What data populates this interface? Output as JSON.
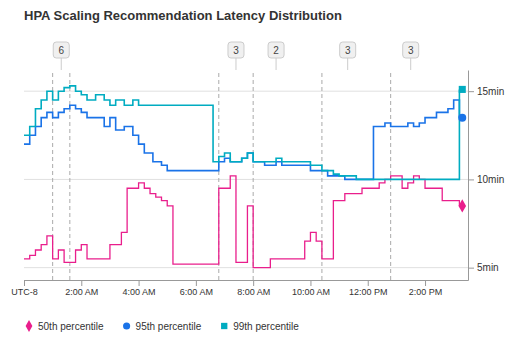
{
  "chart_data": {
    "type": "step",
    "title": "HPA Scaling Recommendation Latency Distribution",
    "xlim": [
      0,
      15.5
    ],
    "xticks": [
      {
        "value": 0,
        "label": "UTC-8"
      },
      {
        "value": 2,
        "label": "2:00 AM"
      },
      {
        "value": 4,
        "label": "4:00 AM"
      },
      {
        "value": 6,
        "label": "6:00 AM"
      },
      {
        "value": 8,
        "label": "8:00 AM"
      },
      {
        "value": 10,
        "label": "10:00 AM"
      },
      {
        "value": 12,
        "label": "12:00 PM"
      },
      {
        "value": 14,
        "label": "2:00 PM"
      }
    ],
    "ylim": [
      4.3,
      16.2
    ],
    "yticks": [
      {
        "value": 5,
        "label": "5min"
      },
      {
        "value": 10,
        "label": "10min"
      },
      {
        "value": 15,
        "label": "15min"
      }
    ],
    "grid": true,
    "legend": "lower left",
    "vlines": [
      1.0,
      1.6,
      6.8,
      8.0,
      10.4,
      12.8
    ],
    "annotations": [
      {
        "x": 1.3,
        "label": "6"
      },
      {
        "x": 7.4,
        "label": "3"
      },
      {
        "x": 8.8,
        "label": "2"
      },
      {
        "x": 11.3,
        "label": "3"
      },
      {
        "x": 13.5,
        "label": "3"
      }
    ],
    "series": [
      {
        "name": "50th percentile",
        "color": "#e91e8c",
        "marker": "diamond",
        "end_x": 15.3,
        "end_value": 8.5,
        "x": [
          0.0,
          0.2,
          0.4,
          0.6,
          0.8,
          1.0,
          1.2,
          1.4,
          1.6,
          1.8,
          2.0,
          2.2,
          2.5,
          2.8,
          3.0,
          3.2,
          3.4,
          3.6,
          3.8,
          4.0,
          4.2,
          4.4,
          4.6,
          4.8,
          5.0,
          5.2,
          5.4,
          5.6,
          5.8,
          6.0,
          6.2,
          6.4,
          6.6,
          6.8,
          7.0,
          7.2,
          7.4,
          7.6,
          7.8,
          8.0,
          8.2,
          8.4,
          8.6,
          8.8,
          9.0,
          9.2,
          9.4,
          9.6,
          9.8,
          10.0,
          10.2,
          10.4,
          10.6,
          10.8,
          11.0,
          11.2,
          11.4,
          11.6,
          11.8,
          12.0,
          12.2,
          12.4,
          12.6,
          12.8,
          13.0,
          13.2,
          13.4,
          13.6,
          13.8,
          14.0,
          14.2,
          14.4,
          14.6,
          14.8,
          15.0,
          15.2
        ],
        "values": [
          5.5,
          5.7,
          6.0,
          6.3,
          6.8,
          5.5,
          6.0,
          5.3,
          5.3,
          6.0,
          6.3,
          5.5,
          5.5,
          5.5,
          6.3,
          6.3,
          7.0,
          9.5,
          9.5,
          9.8,
          9.5,
          9.2,
          9.0,
          8.8,
          8.5,
          5.2,
          5.2,
          5.2,
          5.2,
          5.2,
          5.2,
          5.2,
          5.2,
          9.5,
          9.5,
          10.2,
          5.3,
          5.3,
          8.5,
          5.0,
          5.0,
          5.0,
          5.5,
          5.5,
          5.5,
          5.5,
          5.5,
          5.5,
          6.5,
          7.0,
          6.5,
          5.5,
          5.5,
          8.8,
          8.8,
          9.2,
          9.2,
          9.2,
          9.5,
          9.5,
          9.5,
          9.8,
          10.0,
          10.2,
          10.2,
          9.5,
          9.8,
          10.2,
          10.0,
          9.5,
          9.5,
          9.5,
          8.8,
          8.8,
          8.8,
          8.5
        ]
      },
      {
        "name": "95th percentile",
        "color": "#1a73e8",
        "marker": "circle",
        "end_x": 15.3,
        "end_value": 13.5,
        "x": [
          0.0,
          0.2,
          0.4,
          0.6,
          0.8,
          1.0,
          1.2,
          1.4,
          1.6,
          1.8,
          2.0,
          2.2,
          2.5,
          2.8,
          3.0,
          3.2,
          3.5,
          3.8,
          4.0,
          4.2,
          4.5,
          4.8,
          5.0,
          5.5,
          6.0,
          6.6,
          6.8,
          7.0,
          7.2,
          7.4,
          7.6,
          7.8,
          8.0,
          8.4,
          8.8,
          9.0,
          9.5,
          9.8,
          10.0,
          10.4,
          10.6,
          10.8,
          11.0,
          11.2,
          11.4,
          11.6,
          11.8,
          12.0,
          12.2,
          12.4,
          12.6,
          12.8,
          13.0,
          13.2,
          13.4,
          13.6,
          13.8,
          14.0,
          14.2,
          14.4,
          14.6,
          14.8,
          15.0,
          15.2
        ],
        "values": [
          12.0,
          12.5,
          13.0,
          13.5,
          13.8,
          13.5,
          13.8,
          14.0,
          14.2,
          14.0,
          13.8,
          13.5,
          13.5,
          13.0,
          13.5,
          12.8,
          13.0,
          12.5,
          12.0,
          11.5,
          11.0,
          10.8,
          10.5,
          10.5,
          10.5,
          10.5,
          11.0,
          11.2,
          11.0,
          11.0,
          11.2,
          11.5,
          11.0,
          10.8,
          11.0,
          10.8,
          10.8,
          10.8,
          10.5,
          10.5,
          10.2,
          10.2,
          10.2,
          10.0,
          10.0,
          10.0,
          10.0,
          10.0,
          13.0,
          13.0,
          13.2,
          13.0,
          13.0,
          13.0,
          13.2,
          13.0,
          13.2,
          13.5,
          13.5,
          13.8,
          13.8,
          14.0,
          14.5,
          13.5
        ]
      },
      {
        "name": "99th percentile",
        "color": "#00acc1",
        "marker": "square",
        "end_x": 15.3,
        "end_value": 15.1,
        "x": [
          0.0,
          0.2,
          0.4,
          0.6,
          0.8,
          1.0,
          1.2,
          1.4,
          1.6,
          1.8,
          2.0,
          2.2,
          2.5,
          2.8,
          3.0,
          3.2,
          3.5,
          3.8,
          4.0,
          6.6,
          6.8,
          7.0,
          7.2,
          7.4,
          7.6,
          7.8,
          8.0,
          8.4,
          8.8,
          9.0,
          9.5,
          9.8,
          10.0,
          10.4,
          10.6,
          10.8,
          11.0,
          11.4,
          11.6,
          11.8,
          12.0,
          15.2
        ],
        "values": [
          12.5,
          13.0,
          14.0,
          14.5,
          15.0,
          14.5,
          15.0,
          15.2,
          15.3,
          15.0,
          14.8,
          14.5,
          14.8,
          14.5,
          14.2,
          14.5,
          14.2,
          14.5,
          14.2,
          11.0,
          11.3,
          11.5,
          11.0,
          11.0,
          11.2,
          11.5,
          11.0,
          11.0,
          11.2,
          11.0,
          11.0,
          11.0,
          10.8,
          10.5,
          10.5,
          10.3,
          10.2,
          10.2,
          10.0,
          10.0,
          10.0,
          15.1
        ]
      }
    ]
  }
}
